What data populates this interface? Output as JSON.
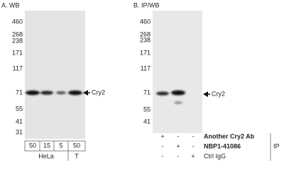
{
  "panels": [
    {
      "title": "A. WB",
      "markers": [
        "460",
        "268",
        "238",
        "171",
        "117",
        "71",
        "55",
        "41",
        "31"
      ],
      "target": "Cry2",
      "lanes": [
        "50",
        "15",
        "5",
        "50"
      ],
      "groups": [
        "HeLa",
        "T"
      ]
    },
    {
      "title": "B. IP/WB",
      "markers": [
        "460",
        "268",
        "238",
        "171",
        "117",
        "71",
        "55",
        "41"
      ],
      "target": "Cry2",
      "ip_rows": [
        {
          "label": "Another Cry2 Ab",
          "signs": [
            "+",
            "-",
            "-"
          ]
        },
        {
          "label": "NBP1-41086",
          "signs": [
            "-",
            "+",
            "-"
          ]
        },
        {
          "label": "Ctrl IgG",
          "signs": [
            "-",
            "-",
            "+"
          ]
        }
      ],
      "ip_label": "IP"
    }
  ]
}
